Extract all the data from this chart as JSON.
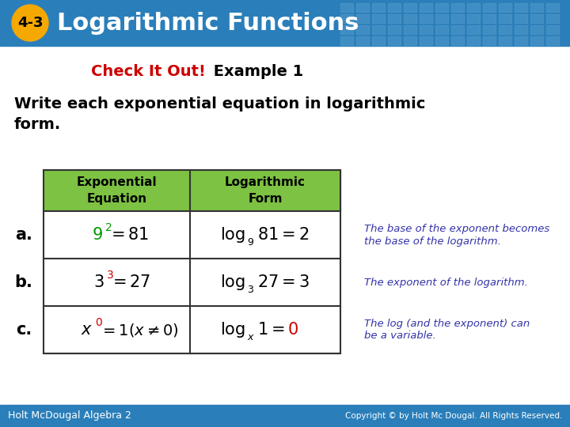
{
  "header_bg_color": "#2a7fba",
  "header_text": "Logarithmic Functions",
  "header_text_color": "#ffffff",
  "badge_bg_color": "#f5a800",
  "badge_text": "4-3",
  "badge_text_color": "#000000",
  "check_it_out_color": "#cc0000",
  "check_it_out_text": "Check It Out!",
  "example_color": "#000000",
  "body_bg_color": "#ffffff",
  "instruction_line1": "Write each exponential equation in logarithmic",
  "instruction_line2": "form.",
  "instruction_color": "#000000",
  "table_header_bg": "#7dc242",
  "table_border_color": "#333333",
  "col1_header": "Exponential\nEquation",
  "col2_header": "Logarithmic\nForm",
  "footer_bg_color": "#2a7fba",
  "footer_left": "Holt McDougal Algebra 2",
  "footer_right": "Copyright © by Holt Mc Dougal. All Rights Reserved.",
  "note_color": "#3333aa",
  "grid_pattern_color": "#5a9fcc",
  "green_color": "#009900",
  "red_color": "#cc0000"
}
